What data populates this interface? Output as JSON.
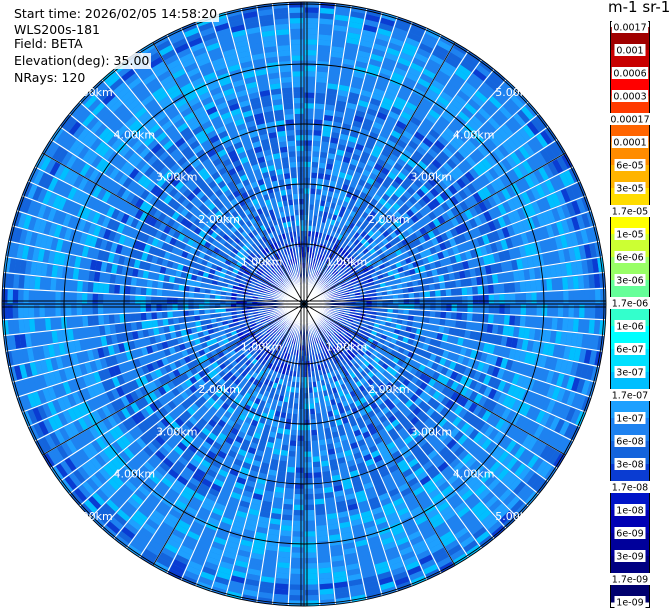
{
  "info": {
    "start_time": "Start time: 2026/02/05 14:58:20",
    "instrument": "WLS200s-181",
    "field": "Field: BETA",
    "elevation": "Elevation(deg): 35.00",
    "nrays": "NRays: 120"
  },
  "colorbar": {
    "title": "m-1 sr-1",
    "labels": [
      "0.0017",
      "0.001",
      "0.0006",
      "0.0003",
      "0.00017",
      "0.0001",
      "6e-05",
      "3e-05",
      "1.7e-05",
      "1e-05",
      "6e-06",
      "3e-06",
      "1.7e-06",
      "1e-06",
      "6e-07",
      "3e-07",
      "1.7e-07",
      "1e-07",
      "6e-08",
      "3e-08",
      "1.7e-08",
      "1e-08",
      "6e-09",
      "3e-09",
      "1.7e-09",
      "1e-09"
    ],
    "colors": [
      "#a00000",
      "#c80000",
      "#ff0000",
      "#ff3a00",
      "#ff6400",
      "#ff8c00",
      "#ffb400",
      "#ffdc00",
      "#ffff00",
      "#ccff33",
      "#99ff66",
      "#66ff99",
      "#33ffcc",
      "#00ffff",
      "#00e0ff",
      "#00bfff",
      "#1ea0ff",
      "#1e82f0",
      "#1464dc",
      "#0a3cd2",
      "#0014c8",
      "#0000b4",
      "#00009b",
      "#000082",
      "#00006e"
    ]
  },
  "chart_data": {
    "type": "heatmap",
    "projection": "polar-ppi",
    "field": "BETA",
    "n_rays": 120,
    "elevation_deg": 35.0,
    "range_rings_km": [
      1,
      2,
      3,
      4,
      5
    ],
    "ring_labels": [
      "1.00km",
      "2.00km",
      "3.00km",
      "4.00km",
      "5.00km"
    ],
    "max_range_km": 5.0,
    "dominant_value_range": [
      1e-08,
      1e-07
    ],
    "typical_value": 3e-08,
    "notes": "Backscatter mostly in 1e-8..1e-7 range; slightly higher (light blue) in outer annulus"
  }
}
